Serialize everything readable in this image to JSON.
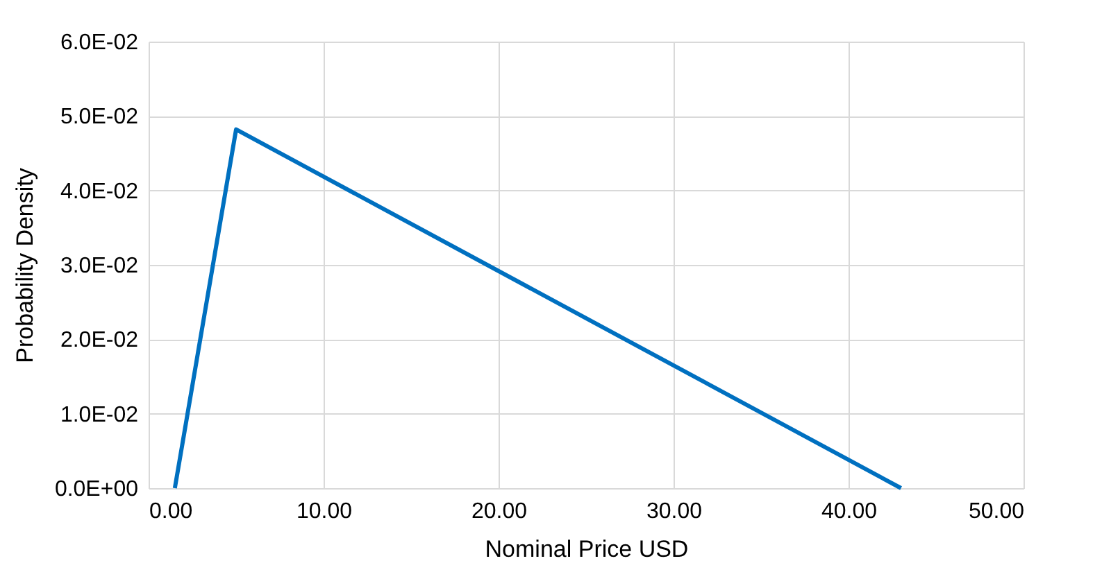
{
  "chart_data": {
    "type": "line",
    "xlabel": "Nominal Price USD",
    "ylabel": "Probability Density",
    "x": [
      1.5,
      5.0,
      43.0
    ],
    "series": [
      {
        "color": "#0070c0",
        "values": [
          0.0,
          0.0482,
          0.0
        ]
      }
    ],
    "xlim": [
      0,
      50
    ],
    "xticks": [
      {
        "value": 0,
        "label": "0.00"
      },
      {
        "value": 10,
        "label": "10.00"
      },
      {
        "value": 20,
        "label": "20.00"
      },
      {
        "value": 30,
        "label": "30.00"
      },
      {
        "value": 40,
        "label": "40.00"
      },
      {
        "value": 50,
        "label": "50.00"
      }
    ],
    "ylim": [
      0,
      0.06
    ],
    "yticks": [
      {
        "value": 0,
        "label": "0.0E+00"
      },
      {
        "value": 0.01,
        "label": "1.0E-02"
      },
      {
        "value": 0.02,
        "label": "2.0E-02"
      },
      {
        "value": 0.03,
        "label": "3.0E-02"
      },
      {
        "value": 0.04,
        "label": "4.0E-02"
      },
      {
        "value": 0.05,
        "label": "5.0E-02"
      },
      {
        "value": 0.06,
        "label": "6.0E-02"
      }
    ],
    "grid": true,
    "marker": "none",
    "line_style": "solid"
  }
}
